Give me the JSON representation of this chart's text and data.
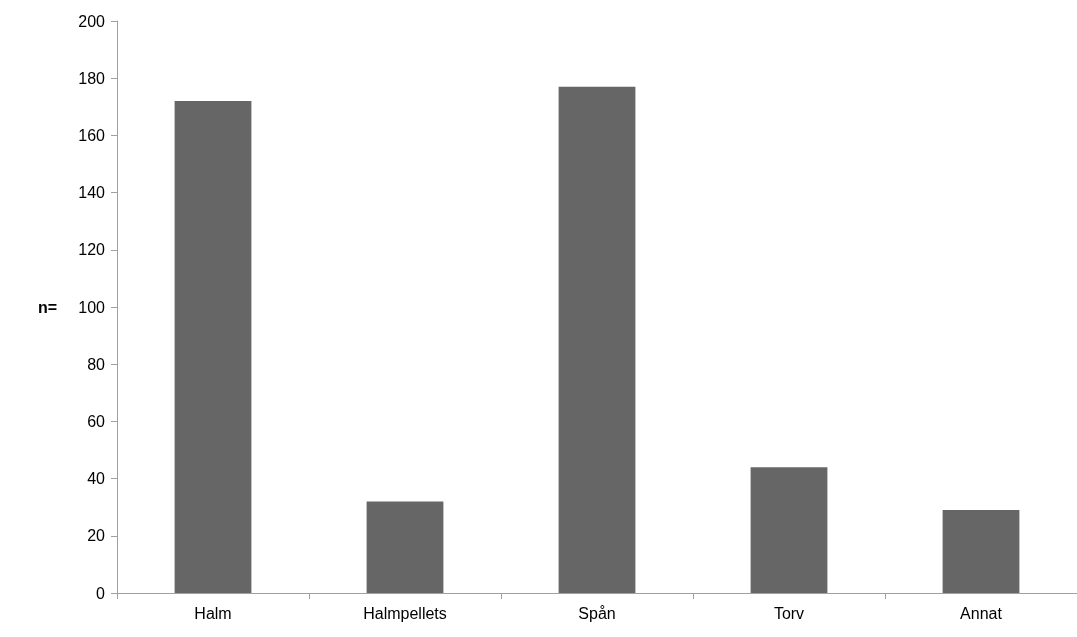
{
  "chart_data": {
    "type": "bar",
    "ylabel": "n=",
    "categories": [
      "Halm",
      "Halmpellets",
      "Spån",
      "Torv",
      "Annat"
    ],
    "values": [
      172,
      32,
      177,
      44,
      29
    ],
    "color": "#666666",
    "ylim": [
      0,
      200
    ],
    "yticks": [
      0,
      20,
      40,
      60,
      80,
      100,
      120,
      140,
      160,
      180,
      200
    ],
    "grid": false
  }
}
